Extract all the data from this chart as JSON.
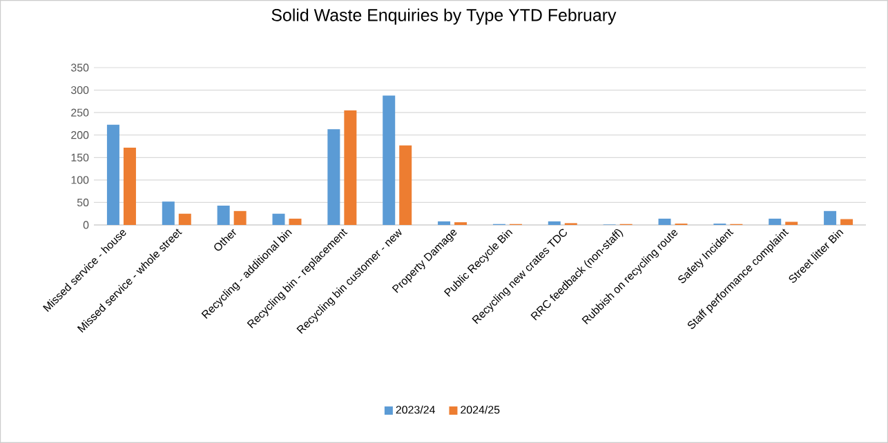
{
  "chart_data": {
    "type": "bar",
    "title": "Solid Waste Enquiries by Type YTD February",
    "categories": [
      "Missed service - house",
      "Missed service - whole street",
      "Other",
      "Recycling - additional bin",
      "Recycling bin - replacement",
      "Recycling bin customer - new",
      "Property Damage",
      "Public Recycle Bin",
      "Recycling new crates TDC",
      "RRC feedback (non-staff)",
      "Rubbish on recycling route",
      "Safety Incident",
      "Staff performance complaint",
      "Street litter Bin"
    ],
    "series": [
      {
        "name": "2023/24",
        "color": "#5b9bd5",
        "values": [
          223,
          52,
          43,
          25,
          213,
          288,
          8,
          2,
          8,
          1,
          14,
          3,
          14,
          31
        ]
      },
      {
        "name": "2024/25",
        "color": "#ed7d31",
        "values": [
          172,
          25,
          31,
          14,
          255,
          177,
          6,
          2,
          4,
          2,
          3,
          2,
          7,
          13
        ]
      }
    ],
    "ylim": [
      0,
      350
    ],
    "yticks": [
      0,
      50,
      100,
      150,
      200,
      250,
      300,
      350
    ],
    "grid": "y",
    "legend": "bottom"
  }
}
